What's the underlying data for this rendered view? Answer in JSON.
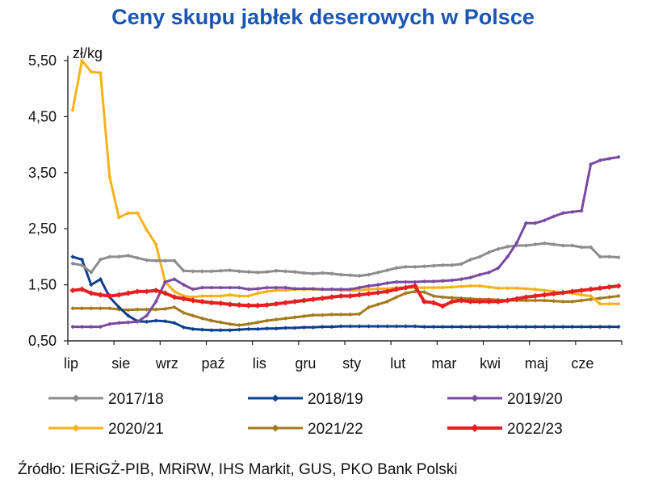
{
  "chart_data": {
    "type": "line",
    "title": "Ceny skupu jabłek deserowych w Polsce",
    "ylabel": "zł/kg",
    "ylim": [
      0.5,
      5.5
    ],
    "yticks": [
      "0,50",
      "1,50",
      "2,50",
      "3,50",
      "4,50",
      "5,50"
    ],
    "ytick_values": [
      0.5,
      1.5,
      2.5,
      3.5,
      4.5,
      5.5
    ],
    "months": [
      "lip",
      "sie",
      "wrz",
      "paź",
      "lis",
      "gru",
      "sty",
      "lut",
      "mar",
      "kwi",
      "maj",
      "cze"
    ],
    "weeks_per_year": 52,
    "grid": false,
    "legend_position": "bottom",
    "series": [
      {
        "name": "2017/18",
        "color": "#8c8c8c",
        "values": [
          1.88,
          1.85,
          1.72,
          1.95,
          2.0,
          2.0,
          2.02,
          1.98,
          1.94,
          1.93,
          1.93,
          1.93,
          1.75,
          1.74,
          1.74,
          1.74,
          1.75,
          1.76,
          1.74,
          1.73,
          1.72,
          1.73,
          1.75,
          1.74,
          1.73,
          1.71,
          1.7,
          1.71,
          1.7,
          1.68,
          1.67,
          1.66,
          1.68,
          1.72,
          1.76,
          1.8,
          1.82,
          1.82,
          1.83,
          1.84,
          1.85,
          1.85,
          1.87,
          1.95,
          2.0,
          2.08,
          2.14,
          2.18,
          2.2,
          2.2,
          2.22,
          2.24,
          2.22,
          2.2,
          2.2,
          2.17,
          2.17,
          2.0,
          2.0,
          1.99
        ]
      },
      {
        "name": "2018/19",
        "color": "#0f3f8f",
        "values": [
          2.0,
          1.95,
          1.5,
          1.6,
          1.28,
          1.1,
          0.95,
          0.85,
          0.84,
          0.86,
          0.85,
          0.82,
          0.74,
          0.71,
          0.7,
          0.69,
          0.69,
          0.69,
          0.7,
          0.71,
          0.71,
          0.72,
          0.72,
          0.73,
          0.73,
          0.74,
          0.74,
          0.75,
          0.75,
          0.76,
          0.76,
          0.76,
          0.76,
          0.76,
          0.76,
          0.76,
          0.76,
          0.76,
          0.75,
          0.75,
          0.75,
          0.75,
          0.75,
          0.75,
          0.75,
          0.75,
          0.75,
          0.75,
          0.75,
          0.75,
          0.75,
          0.75,
          0.75,
          0.75,
          0.75,
          0.75,
          0.75,
          0.75,
          0.75,
          0.75
        ]
      },
      {
        "name": "2019/20",
        "color": "#7a4aa1",
        "values": [
          0.75,
          0.75,
          0.75,
          0.75,
          0.8,
          0.82,
          0.83,
          0.84,
          0.95,
          1.2,
          1.55,
          1.6,
          1.5,
          1.42,
          1.45,
          1.45,
          1.45,
          1.45,
          1.45,
          1.42,
          1.43,
          1.45,
          1.45,
          1.45,
          1.43,
          1.43,
          1.43,
          1.42,
          1.42,
          1.42,
          1.42,
          1.45,
          1.48,
          1.5,
          1.53,
          1.55,
          1.55,
          1.55,
          1.56,
          1.56,
          1.57,
          1.58,
          1.6,
          1.63,
          1.68,
          1.72,
          1.8,
          2.0,
          2.25,
          2.6,
          2.6,
          2.65,
          2.72,
          2.78,
          2.8,
          2.82,
          3.65,
          3.72,
          3.75,
          3.78
        ]
      },
      {
        "name": "2020/21",
        "color": "#f7b21a",
        "values": [
          4.62,
          5.5,
          5.3,
          5.28,
          3.42,
          2.7,
          2.78,
          2.78,
          2.48,
          2.22,
          1.55,
          1.38,
          1.3,
          1.28,
          1.3,
          1.3,
          1.3,
          1.32,
          1.3,
          1.3,
          1.35,
          1.38,
          1.4,
          1.4,
          1.42,
          1.42,
          1.42,
          1.42,
          1.42,
          1.4,
          1.4,
          1.4,
          1.42,
          1.43,
          1.43,
          1.45,
          1.45,
          1.45,
          1.45,
          1.45,
          1.45,
          1.46,
          1.47,
          1.48,
          1.48,
          1.46,
          1.44,
          1.44,
          1.44,
          1.43,
          1.42,
          1.4,
          1.38,
          1.36,
          1.35,
          1.32,
          1.3,
          1.16,
          1.16,
          1.16
        ]
      },
      {
        "name": "2021/22",
        "color": "#a47a1c",
        "values": [
          1.08,
          1.08,
          1.08,
          1.08,
          1.08,
          1.06,
          1.05,
          1.06,
          1.06,
          1.06,
          1.07,
          1.1,
          1.0,
          0.95,
          0.9,
          0.86,
          0.83,
          0.8,
          0.78,
          0.8,
          0.83,
          0.86,
          0.88,
          0.9,
          0.92,
          0.94,
          0.96,
          0.96,
          0.97,
          0.97,
          0.97,
          0.98,
          1.1,
          1.15,
          1.2,
          1.28,
          1.35,
          1.38,
          1.37,
          1.3,
          1.28,
          1.27,
          1.26,
          1.25,
          1.24,
          1.24,
          1.23,
          1.22,
          1.22,
          1.22,
          1.22,
          1.22,
          1.21,
          1.2,
          1.2,
          1.22,
          1.24,
          1.26,
          1.28,
          1.3
        ]
      },
      {
        "name": "2022/23",
        "color": "#e52021",
        "values": [
          1.4,
          1.42,
          1.35,
          1.32,
          1.3,
          1.32,
          1.35,
          1.38,
          1.38,
          1.4,
          1.35,
          1.28,
          1.25,
          1.22,
          1.2,
          1.18,
          1.17,
          1.15,
          1.14,
          1.13,
          1.13,
          1.14,
          1.16,
          1.18,
          1.2,
          1.22,
          1.24,
          1.26,
          1.28,
          1.3,
          1.3,
          1.32,
          1.34,
          1.36,
          1.38,
          1.42,
          1.45,
          1.48,
          1.2,
          1.18,
          1.12,
          1.2,
          1.22,
          1.2,
          1.2,
          1.2,
          1.2,
          1.22,
          1.25,
          1.28,
          1.3,
          1.32,
          1.34,
          1.36,
          1.38,
          1.4,
          1.42,
          1.44,
          1.46,
          1.48
        ]
      }
    ]
  },
  "source": "Źródło: IERiGŻ-PIB, MRiRW, IHS Markit, GUS, PKO Bank Polski"
}
